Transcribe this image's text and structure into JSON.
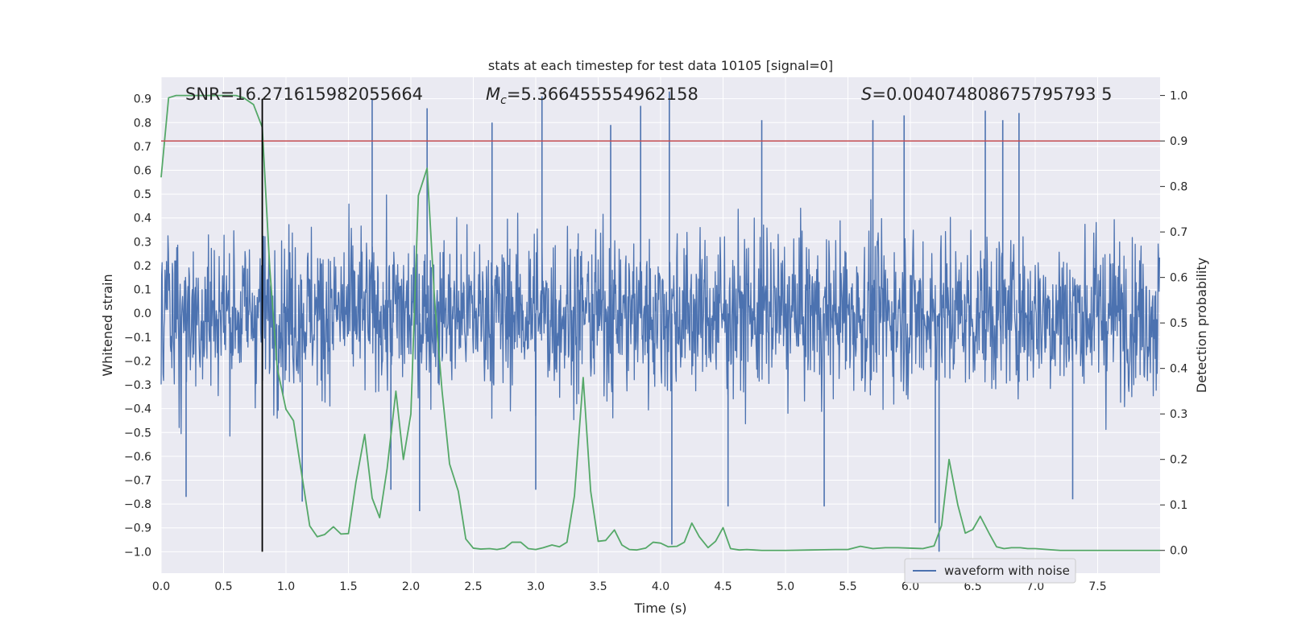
{
  "chart_data": {
    "type": "line",
    "title": "stats at each timestep for test data 10105 [signal=0]",
    "xlabel": "Time (s)",
    "ylabel": "Whitened strain",
    "y2label": "Detection probability",
    "xlim": [
      0.0,
      8.0
    ],
    "ylim": [
      -1.09,
      0.99
    ],
    "y2lim": [
      -0.05,
      1.04
    ],
    "xticks": [
      "0.0",
      "0.5",
      "1.0",
      "1.5",
      "2.0",
      "2.5",
      "3.0",
      "3.5",
      "4.0",
      "4.5",
      "5.0",
      "5.5",
      "6.0",
      "6.5",
      "7.0",
      "7.5"
    ],
    "yticks": [
      "0.9",
      "0.8",
      "0.7",
      "0.6",
      "0.5",
      "0.4",
      "0.3",
      "0.2",
      "0.1",
      "0.0",
      "-0.1",
      "-0.2",
      "-0.3",
      "-0.4",
      "-0.5",
      "-0.6",
      "-0.7",
      "-0.8",
      "-0.9",
      "-1.0"
    ],
    "y2ticks": [
      "1.0",
      "0.9",
      "0.8",
      "0.7",
      "0.6",
      "0.5",
      "0.4",
      "0.3",
      "0.2",
      "0.1",
      "0.0"
    ],
    "threshold_probability": 0.9,
    "marker_time": 0.81,
    "annotations": {
      "snr": "SNR=16.271615982055664",
      "mc_value": "=5.366455554962158",
      "mc_symbol": "M",
      "mc_subscript": "c",
      "s_symbol": "S",
      "s_value": "=0.004074808675795793 5"
    },
    "legend": {
      "label": "waveform with noise",
      "position": "lower-right"
    },
    "series": [
      {
        "name": "detection probability",
        "axis": "right",
        "color": "#55a868",
        "x": [
          0.0,
          0.06,
          0.12,
          0.2,
          0.3,
          0.4,
          0.5,
          0.6,
          0.66,
          0.74,
          0.81,
          0.87,
          0.93,
          1.0,
          1.06,
          1.13,
          1.19,
          1.25,
          1.31,
          1.38,
          1.44,
          1.5,
          1.56,
          1.63,
          1.69,
          1.75,
          1.81,
          1.88,
          1.94,
          2.0,
          2.06,
          2.13,
          2.19,
          2.25,
          2.31,
          2.38,
          2.44,
          2.5,
          2.56,
          2.63,
          2.69,
          2.75,
          2.81,
          2.88,
          2.94,
          3.0,
          3.06,
          3.13,
          3.19,
          3.25,
          3.31,
          3.38,
          3.44,
          3.5,
          3.56,
          3.63,
          3.69,
          3.75,
          3.81,
          3.88,
          3.94,
          4.0,
          4.06,
          4.13,
          4.19,
          4.25,
          4.31,
          4.38,
          4.44,
          4.5,
          4.56,
          4.63,
          4.69,
          4.75,
          4.81,
          4.88,
          5.0,
          5.2,
          5.4,
          5.5,
          5.6,
          5.7,
          5.8,
          5.9,
          6.0,
          6.1,
          6.19,
          6.25,
          6.31,
          6.38,
          6.44,
          6.5,
          6.56,
          6.63,
          6.69,
          6.75,
          6.81,
          6.88,
          6.94,
          7.0,
          7.2,
          7.4,
          7.6,
          7.8,
          8.0
        ],
        "values": [
          0.82,
          0.995,
          1.0,
          1.0,
          1.0,
          1.0,
          1.0,
          1.0,
          0.995,
          0.98,
          0.93,
          0.62,
          0.4,
          0.31,
          0.285,
          0.16,
          0.054,
          0.03,
          0.035,
          0.052,
          0.036,
          0.037,
          0.15,
          0.255,
          0.115,
          0.072,
          0.18,
          0.35,
          0.2,
          0.3,
          0.78,
          0.84,
          0.55,
          0.35,
          0.19,
          0.13,
          0.025,
          0.005,
          0.003,
          0.004,
          0.002,
          0.005,
          0.018,
          0.018,
          0.004,
          0.002,
          0.006,
          0.012,
          0.008,
          0.018,
          0.12,
          0.38,
          0.13,
          0.02,
          0.022,
          0.045,
          0.012,
          0.002,
          0.001,
          0.005,
          0.018,
          0.016,
          0.008,
          0.009,
          0.018,
          0.06,
          0.03,
          0.006,
          0.02,
          0.05,
          0.004,
          0.001,
          0.002,
          0.001,
          0.0,
          0.0,
          0.0,
          0.001,
          0.002,
          0.002,
          0.009,
          0.004,
          0.006,
          0.006,
          0.005,
          0.004,
          0.01,
          0.055,
          0.2,
          0.1,
          0.038,
          0.046,
          0.075,
          0.038,
          0.008,
          0.004,
          0.006,
          0.006,
          0.004,
          0.004,
          0.0,
          0.0,
          0.0,
          0.0,
          0.0
        ]
      },
      {
        "name": "waveform with noise",
        "axis": "left",
        "color": "#4c72b0",
        "samples": 2048,
        "envelope": "noise approximately within -0.5..0.5, occasional spikes up to 0.93 and down to -1.0",
        "spikes": [
          {
            "x": 0.2,
            "y": -0.77
          },
          {
            "x": 1.13,
            "y": -0.79
          },
          {
            "x": 1.69,
            "y": 0.9
          },
          {
            "x": 1.84,
            "y": -0.74
          },
          {
            "x": 2.07,
            "y": -0.83
          },
          {
            "x": 2.13,
            "y": 0.86
          },
          {
            "x": 3.0,
            "y": -0.74
          },
          {
            "x": 3.05,
            "y": 0.91
          },
          {
            "x": 3.84,
            "y": 0.87
          },
          {
            "x": 4.07,
            "y": 0.93
          },
          {
            "x": 4.09,
            "y": -0.97
          },
          {
            "x": 4.54,
            "y": -0.81
          },
          {
            "x": 4.81,
            "y": 0.81
          },
          {
            "x": 5.31,
            "y": -0.81
          },
          {
            "x": 5.7,
            "y": 0.81
          },
          {
            "x": 6.2,
            "y": -0.88
          },
          {
            "x": 6.23,
            "y": -1.0
          },
          {
            "x": 6.6,
            "y": 0.85
          },
          {
            "x": 6.74,
            "y": 0.81
          },
          {
            "x": 6.87,
            "y": 0.84
          },
          {
            "x": 7.3,
            "y": -0.78
          },
          {
            "x": 2.65,
            "y": 0.8
          },
          {
            "x": 3.6,
            "y": 0.79
          },
          {
            "x": 5.95,
            "y": 0.83
          }
        ]
      }
    ]
  },
  "colors": {
    "figure_bg": "#ffffff",
    "axes_bg": "#eaeaf2",
    "grid": "#ffffff",
    "waveform": "#4c72b0",
    "probability": "#55a868",
    "threshold": "#c44e52",
    "marker": "#000000"
  }
}
